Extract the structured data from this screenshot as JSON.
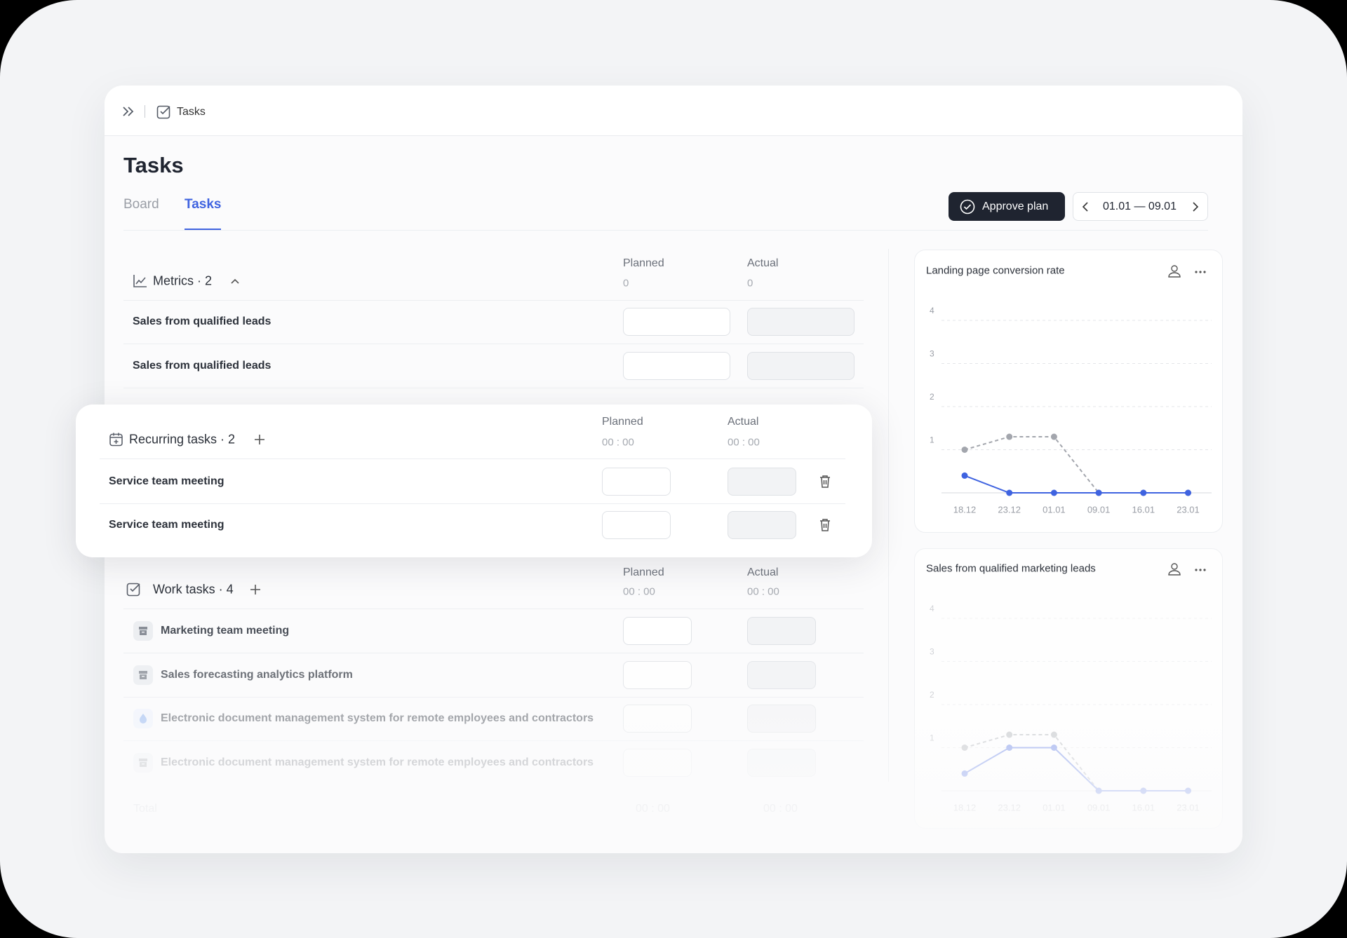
{
  "breadcrumb": "Tasks",
  "title": "Tasks",
  "tabs": [
    "Board",
    "Tasks"
  ],
  "approve_button": "Approve plan",
  "date_range": "01.01 — 09.01",
  "metrics": {
    "title": "Metrics · 2",
    "planned_label": "Planned",
    "actual_label": "Actual",
    "planned_total": "0",
    "actual_total": "0",
    "rows": [
      "Sales from qualified leads",
      "Sales from qualified leads"
    ]
  },
  "recurring": {
    "title": "Recurring tasks · 2",
    "planned_label": "Planned",
    "actual_label": "Actual",
    "planned_total": "00 : 00",
    "actual_total": "00 : 00",
    "rows": [
      "Service team meeting",
      "Service team meeting"
    ]
  },
  "work": {
    "title": "Work tasks · 4",
    "planned_label": "Planned",
    "actual_label": "Actual",
    "planned_total": "00 : 00",
    "actual_total": "00 : 00",
    "rows": [
      "Marketing team meeting",
      "Sales forecasting analytics platform",
      "Electronic document management system for remote employees and contractors",
      "Electronic document management system for remote employees and contractors"
    ]
  },
  "total": {
    "label": "Total",
    "planned": "00 : 00",
    "actual": "00 : 00"
  },
  "charts": [
    {
      "type": "line",
      "title": "Landing page conversion rate",
      "x": [
        "18.12",
        "23.12",
        "01.01",
        "09.01",
        "16.01",
        "23.01"
      ],
      "ylim": [
        0,
        4
      ],
      "yticks": [
        1,
        2,
        3,
        4
      ],
      "grid": true,
      "series": [
        {
          "color": "#a3a6ad",
          "style": "dashed",
          "values": [
            1,
            1.3,
            1.3,
            0,
            0,
            0
          ]
        },
        {
          "color": "#3f63e0",
          "style": "solid",
          "values": [
            0.4,
            0,
            0,
            0,
            0,
            0
          ]
        }
      ]
    },
    {
      "type": "line",
      "title": "Sales from qualified marketing leads",
      "x": [
        "18.12",
        "23.12",
        "01.01",
        "09.01",
        "16.01",
        "23.01"
      ],
      "ylim": [
        0,
        4
      ],
      "yticks": [
        1,
        2,
        3,
        4
      ],
      "grid": true,
      "series": [
        {
          "color": "#a3a6ad",
          "style": "dashed",
          "values": [
            1,
            1.3,
            1.3,
            0,
            0,
            0
          ]
        },
        {
          "color": "#3f63e0",
          "style": "solid",
          "values": [
            0.4,
            1,
            1,
            0,
            0,
            0
          ]
        }
      ]
    }
  ]
}
